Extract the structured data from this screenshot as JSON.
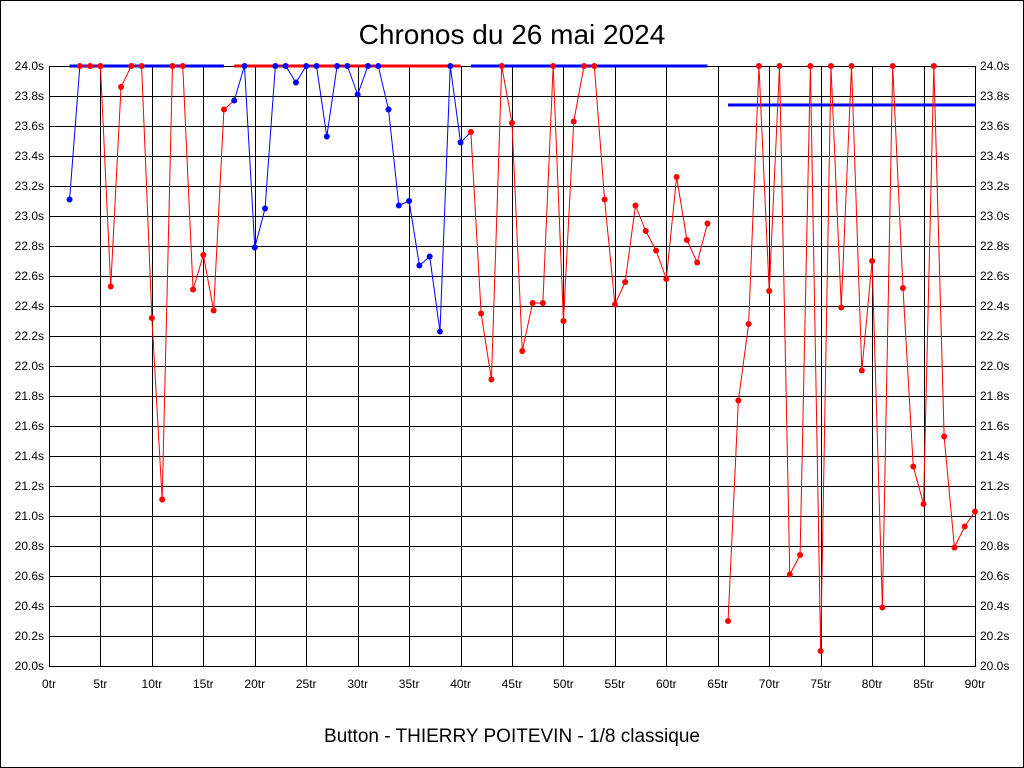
{
  "chart_data": {
    "type": "line",
    "title": "Chronos du 26 mai 2024",
    "caption": "Button - THIERRY POITEVIN - 1/8 classique",
    "xlim": [
      0,
      90
    ],
    "ylim": [
      20.0,
      24.0
    ],
    "grid": true,
    "y_ticks_both_sides": true,
    "colors": {
      "red": "#ff0000",
      "blue": "#0000ff"
    },
    "x_ticks": [
      {
        "value": 0,
        "label": "0tr"
      },
      {
        "value": 5,
        "label": "5tr"
      },
      {
        "value": 10,
        "label": "10tr"
      },
      {
        "value": 15,
        "label": "15tr"
      },
      {
        "value": 20,
        "label": "20tr"
      },
      {
        "value": 25,
        "label": "25tr"
      },
      {
        "value": 30,
        "label": "30tr"
      },
      {
        "value": 35,
        "label": "35tr"
      },
      {
        "value": 40,
        "label": "40tr"
      },
      {
        "value": 45,
        "label": "45tr"
      },
      {
        "value": 50,
        "label": "50tr"
      },
      {
        "value": 55,
        "label": "55tr"
      },
      {
        "value": 60,
        "label": "60tr"
      },
      {
        "value": 65,
        "label": "65tr"
      },
      {
        "value": 70,
        "label": "70tr"
      },
      {
        "value": 75,
        "label": "75tr"
      },
      {
        "value": 80,
        "label": "80tr"
      },
      {
        "value": 85,
        "label": "85tr"
      },
      {
        "value": 90,
        "label": "90tr"
      }
    ],
    "y_ticks": [
      {
        "value": 20.0,
        "label": "20.0s"
      },
      {
        "value": 20.2,
        "label": "20.2s"
      },
      {
        "value": 20.4,
        "label": "20.4s"
      },
      {
        "value": 20.6,
        "label": "20.6s"
      },
      {
        "value": 20.8,
        "label": "20.8s"
      },
      {
        "value": 21.0,
        "label": "21.0s"
      },
      {
        "value": 21.2,
        "label": "21.2s"
      },
      {
        "value": 21.4,
        "label": "21.4s"
      },
      {
        "value": 21.6,
        "label": "21.6s"
      },
      {
        "value": 21.8,
        "label": "21.8s"
      },
      {
        "value": 22.0,
        "label": "22.0s"
      },
      {
        "value": 22.2,
        "label": "22.2s"
      },
      {
        "value": 22.4,
        "label": "22.4s"
      },
      {
        "value": 22.6,
        "label": "22.6s"
      },
      {
        "value": 22.8,
        "label": "22.8s"
      },
      {
        "value": 23.0,
        "label": "23.0s"
      },
      {
        "value": 23.2,
        "label": "23.2s"
      },
      {
        "value": 23.4,
        "label": "23.4s"
      },
      {
        "value": 23.6,
        "label": "23.6s"
      },
      {
        "value": 23.8,
        "label": "23.8s"
      },
      {
        "value": 24.0,
        "label": "24.0s"
      }
    ],
    "laps": [
      2,
      3,
      4,
      5,
      6,
      7,
      8,
      9,
      10,
      11,
      12,
      13,
      14,
      15,
      16,
      17,
      18,
      19,
      20,
      21,
      22,
      23,
      24,
      25,
      26,
      27,
      28,
      29,
      30,
      31,
      32,
      33,
      34,
      35,
      36,
      37,
      38,
      39,
      40,
      41,
      42,
      43,
      44,
      45,
      46,
      47,
      48,
      49,
      50,
      51,
      52,
      53,
      54,
      55,
      56,
      57,
      58,
      59,
      60,
      61,
      62,
      63,
      64,
      65,
      66,
      67,
      68,
      69,
      70,
      71,
      72,
      73,
      74,
      75,
      76,
      77,
      78,
      79,
      80,
      81,
      82,
      83,
      84,
      85,
      86,
      87,
      88,
      89,
      90
    ],
    "times": [
      23.11,
      24.0,
      24.0,
      24.0,
      22.53,
      23.86,
      24.0,
      24.0,
      22.32,
      21.11,
      24.0,
      24.0,
      22.51,
      22.74,
      22.37,
      23.71,
      23.77,
      24.0,
      22.79,
      23.05,
      24.0,
      24.0,
      23.89,
      24.0,
      24.0,
      23.53,
      24.0,
      24.0,
      23.81,
      24.0,
      24.0,
      23.71,
      23.07,
      23.1,
      22.67,
      22.73,
      22.23,
      24.0,
      23.49,
      23.56,
      22.35,
      21.91,
      24.0,
      23.62,
      22.1,
      22.42,
      22.42,
      24.0,
      22.3,
      23.63,
      24.0,
      24.0,
      23.11,
      22.41,
      22.56,
      23.07,
      22.9,
      22.77,
      22.58,
      23.26,
      22.84,
      22.69,
      22.95,
      null,
      20.3,
      21.77,
      22.28,
      24.0,
      22.5,
      24.0,
      20.61,
      20.74,
      24.0,
      20.1,
      24.0,
      22.39,
      24.0,
      21.97,
      22.7,
      20.39,
      24.0,
      22.52,
      21.33,
      21.08,
      24.0,
      21.53,
      20.79,
      20.93,
      21.03
    ],
    "point_colors": [
      "blue",
      "red",
      "red",
      "red",
      "red",
      "red",
      "red",
      "red",
      "red",
      "red",
      "red",
      "red",
      "red",
      "red",
      "red",
      "red",
      "blue",
      "blue",
      "blue",
      "blue",
      "blue",
      "blue",
      "blue",
      "blue",
      "blue",
      "blue",
      "blue",
      "blue",
      "blue",
      "blue",
      "blue",
      "blue",
      "blue",
      "blue",
      "blue",
      "blue",
      "blue",
      "blue",
      "blue",
      "red",
      "red",
      "red",
      "red",
      "red",
      "red",
      "red",
      "red",
      "red",
      "red",
      "red",
      "red",
      "red",
      "red",
      "red",
      "red",
      "red",
      "red",
      "red",
      "red",
      "red",
      "red",
      "red",
      "red",
      null,
      "red",
      "red",
      "red",
      "red",
      "red",
      "red",
      "red",
      "red",
      "red",
      "red",
      "red",
      "red",
      "red",
      "red",
      "red",
      "red",
      "red",
      "red",
      "red",
      "red",
      "red",
      "red",
      "red",
      "red",
      "red"
    ],
    "reference_lines": [
      {
        "from_lap": 2,
        "to_lap": 17,
        "value": 24.0,
        "color": "blue"
      },
      {
        "from_lap": 18,
        "to_lap": 40,
        "value": 24.0,
        "color": "red"
      },
      {
        "from_lap": 41,
        "to_lap": 64,
        "value": 24.0,
        "color": "blue"
      },
      {
        "from_lap": 66,
        "to_lap": 90,
        "value": 23.74,
        "color": "blue"
      }
    ]
  }
}
